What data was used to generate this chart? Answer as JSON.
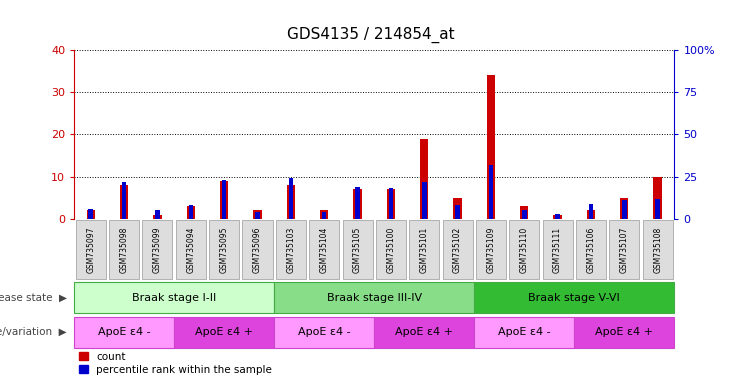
{
  "title": "GDS4135 / 214854_at",
  "samples": [
    "GSM735097",
    "GSM735098",
    "GSM735099",
    "GSM735094",
    "GSM735095",
    "GSM735096",
    "GSM735103",
    "GSM735104",
    "GSM735105",
    "GSM735100",
    "GSM735101",
    "GSM735102",
    "GSM735109",
    "GSM735110",
    "GSM735111",
    "GSM735106",
    "GSM735107",
    "GSM735108"
  ],
  "count": [
    2,
    8,
    1,
    3,
    9,
    2,
    8,
    2,
    7,
    7,
    19,
    5,
    34,
    3,
    1,
    2,
    5,
    10
  ],
  "percentile": [
    6,
    22,
    5,
    8,
    23,
    4,
    24,
    4,
    19,
    18,
    22,
    8,
    32,
    5,
    3,
    9,
    11,
    12
  ],
  "count_color": "#cc0000",
  "percentile_color": "#0000cc",
  "ylim_left": [
    0,
    40
  ],
  "ylim_right": [
    0,
    100
  ],
  "yticks_left": [
    0,
    10,
    20,
    30,
    40
  ],
  "yticks_right": [
    0,
    25,
    50,
    75,
    100
  ],
  "ytick_labels_left": [
    "0",
    "10",
    "20",
    "30",
    "40"
  ],
  "ytick_labels_right": [
    "0",
    "25",
    "50",
    "75",
    "100%"
  ],
  "grid_color": "black",
  "bar_width": 0.25,
  "disease_state_label": "disease state",
  "genotype_label": "genotype/variation",
  "disease_groups": [
    {
      "label": "Braak stage I-II",
      "start": 1,
      "end": 6,
      "color": "#ccffcc",
      "edge": "#44aa44"
    },
    {
      "label": "Braak stage III-IV",
      "start": 7,
      "end": 12,
      "color": "#88dd88",
      "edge": "#44aa44"
    },
    {
      "label": "Braak stage V-VI",
      "start": 13,
      "end": 18,
      "color": "#33bb33",
      "edge": "#44aa44"
    }
  ],
  "genotype_groups": [
    {
      "label": "ApoE ε4 -",
      "start": 1,
      "end": 3,
      "color": "#ff99ff",
      "edge": "#cc44cc"
    },
    {
      "label": "ApoE ε4 +",
      "start": 4,
      "end": 6,
      "color": "#dd44dd",
      "edge": "#cc44cc"
    },
    {
      "label": "ApoE ε4 -",
      "start": 7,
      "end": 9,
      "color": "#ff99ff",
      "edge": "#cc44cc"
    },
    {
      "label": "ApoE ε4 +",
      "start": 10,
      "end": 12,
      "color": "#dd44dd",
      "edge": "#cc44cc"
    },
    {
      "label": "ApoE ε4 -",
      "start": 13,
      "end": 15,
      "color": "#ff99ff",
      "edge": "#cc44cc"
    },
    {
      "label": "ApoE ε4 +",
      "start": 16,
      "end": 18,
      "color": "#dd44dd",
      "edge": "#cc44cc"
    }
  ],
  "legend_count": "count",
  "legend_percentile": "percentile rank within the sample",
  "bg_color": "#ffffff",
  "xtick_bg": "#dddddd",
  "arrow_color": "#888888"
}
